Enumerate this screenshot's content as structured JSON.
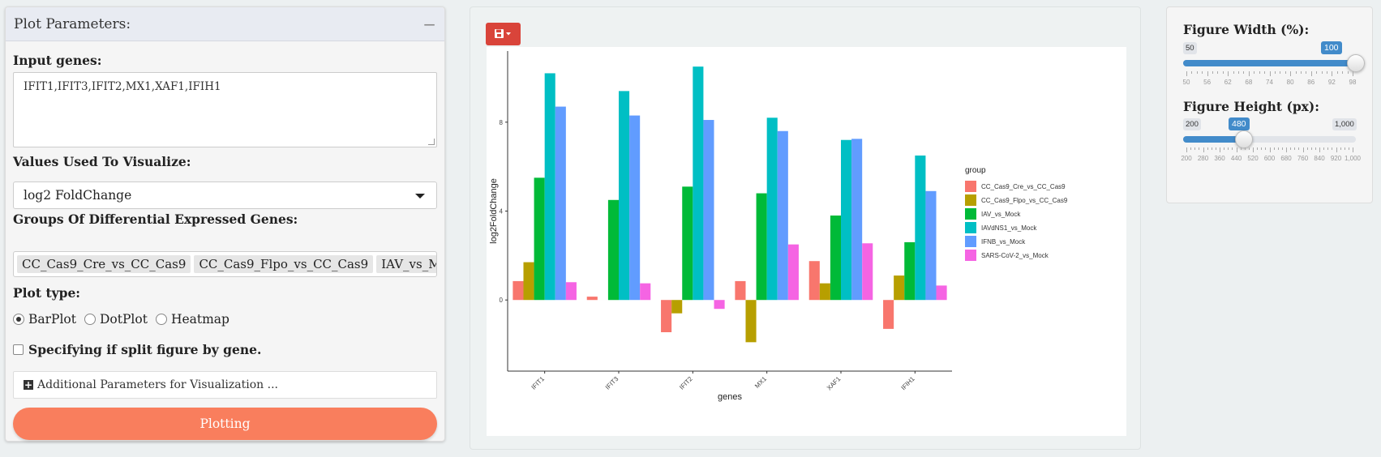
{
  "left_panel": {
    "title": "Plot Parameters:",
    "collapse_icon": "minus-icon",
    "input_genes_label": "Input genes:",
    "input_genes_value": "IFIT1,IFIT3,IFIT2,MX1,XAF1,IFIH1",
    "values_label": "Values Used To Visualize:",
    "values_selected": "log2 FoldChange",
    "groups_label": "Groups Of Differential Expressed Genes:",
    "groups_tags": [
      "CC_Cas9_Cre_vs_CC_Cas9",
      "CC_Cas9_Flpo_vs_CC_Cas9",
      "IAV_vs_Mock",
      "IA"
    ],
    "plot_type_label": "Plot type:",
    "plot_types": [
      "BarPlot",
      "DotPlot",
      "Heatmap"
    ],
    "plot_type_selected": "BarPlot",
    "split_label": "Specifying if split figure by gene.",
    "split_checked": false,
    "additional_label": "Additional Parameters for Visualization ...",
    "plot_button": "Plotting",
    "accent_color": "#f97e5d"
  },
  "toolbar": {
    "save_icon": "save-icon",
    "save_color": "#d9443a"
  },
  "chart_data": {
    "type": "bar",
    "categories": [
      "IFIT1",
      "IFIT3",
      "IFIT2",
      "MX1",
      "XAF1",
      "IFIH1"
    ],
    "xlabel": "genes",
    "ylabel": "log2FoldChange",
    "ylim": [
      -3.2,
      11.2
    ],
    "yticks": [
      0,
      4,
      8
    ],
    "legend_title": "group",
    "legend_position": "right",
    "series": [
      {
        "name": "CC_Cas9_Cre_vs_CC_Cas9",
        "color": "#f8766d",
        "values": [
          0.85,
          0.15,
          -1.45,
          0.85,
          1.75,
          -1.3
        ]
      },
      {
        "name": "CC_Cas9_Flpo_vs_CC_Cas9",
        "color": "#b79f00",
        "values": [
          1.7,
          0.0,
          -0.6,
          -1.9,
          0.75,
          1.1
        ]
      },
      {
        "name": "IAV_vs_Mock",
        "color": "#00ba38",
        "values": [
          5.5,
          4.5,
          5.1,
          4.8,
          3.8,
          2.6
        ]
      },
      {
        "name": "IAVdNS1_vs_Mock",
        "color": "#00bfc4",
        "values": [
          10.2,
          9.4,
          10.5,
          8.2,
          7.2,
          6.5
        ]
      },
      {
        "name": "IFNB_vs_Mock",
        "color": "#619cff",
        "values": [
          8.7,
          8.3,
          8.1,
          7.6,
          7.25,
          4.9
        ]
      },
      {
        "name": "SARS-CoV-2_vs_Mock",
        "color": "#f564e3",
        "values": [
          0.8,
          0.75,
          -0.4,
          2.5,
          2.55,
          0.65
        ]
      }
    ]
  },
  "right_panel": {
    "width_label": "Figure Width (%):",
    "width_min": "50",
    "width_max": "100",
    "width_value": "100",
    "width_value_num": 100,
    "width_range": [
      50,
      100
    ],
    "width_ticks": [
      "50",
      "56",
      "62",
      "68",
      "74",
      "80",
      "86",
      "92",
      "98"
    ],
    "height_label": "Figure Height (px):",
    "height_min": "200",
    "height_max": "1,000",
    "height_value": "480",
    "height_value_num": 480,
    "height_range": [
      200,
      1000
    ],
    "height_ticks": [
      "200",
      "280",
      "360",
      "440",
      "520",
      "600",
      "680",
      "760",
      "840",
      "920",
      "1,000"
    ],
    "slider_color": "#428bca"
  }
}
